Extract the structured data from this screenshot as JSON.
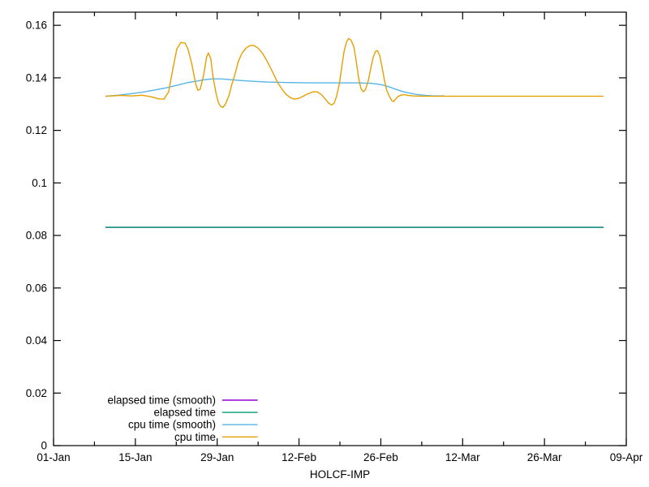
{
  "chart_data": {
    "type": "line",
    "title": "",
    "xlabel": "HOLCF-IMP",
    "ylabel": "",
    "grid": false,
    "background_color": "#ffffff",
    "axis_color": "#000000",
    "x_axis": {
      "unit": "date",
      "range_days": [
        0,
        98
      ],
      "major_ticks": [
        {
          "day": 0,
          "label": "01-Jan"
        },
        {
          "day": 14,
          "label": "15-Jan"
        },
        {
          "day": 28,
          "label": "29-Jan"
        },
        {
          "day": 42,
          "label": "12-Feb"
        },
        {
          "day": 56,
          "label": "26-Feb"
        },
        {
          "day": 70,
          "label": "12-Mar"
        },
        {
          "day": 84,
          "label": "26-Mar"
        },
        {
          "day": 98,
          "label": "09-Apr"
        }
      ],
      "minor_tick_days": [
        7,
        21,
        35,
        49,
        63,
        77,
        91
      ]
    },
    "y_axis": {
      "range": [
        0,
        0.165
      ],
      "ticks": [
        {
          "value": 0,
          "label": "0"
        },
        {
          "value": 0.02,
          "label": "0.02"
        },
        {
          "value": 0.04,
          "label": "0.04"
        },
        {
          "value": 0.06,
          "label": "0.06"
        },
        {
          "value": 0.08,
          "label": "0.08"
        },
        {
          "value": 0.1,
          "label": "0.1"
        },
        {
          "value": 0.12,
          "label": "0.12"
        },
        {
          "value": 0.14,
          "label": "0.14"
        },
        {
          "value": 0.16,
          "label": "0.16"
        }
      ]
    },
    "legend": {
      "position": "bottom-left-inside",
      "entries": [
        {
          "label": "elapsed time (smooth)",
          "color": "#9400d3"
        },
        {
          "label": "elapsed time",
          "color": "#009e73"
        },
        {
          "label": "cpu time (smooth)",
          "color": "#56b4e9"
        },
        {
          "label": "cpu time",
          "color": "#e69f00"
        }
      ]
    },
    "series": [
      {
        "name": "elapsed time (smooth)",
        "color": "#9400d3",
        "points": [
          [
            8.9,
            0.0831
          ],
          [
            94.1,
            0.0831
          ]
        ]
      },
      {
        "name": "elapsed time",
        "color": "#009e73",
        "points": [
          [
            8.9,
            0.0831
          ],
          [
            94.1,
            0.0831
          ]
        ]
      },
      {
        "name": "cpu time (smooth)",
        "color": "#56b4e9",
        "points": [
          [
            8.9,
            0.133
          ],
          [
            11,
            0.1334
          ],
          [
            13,
            0.1339
          ],
          [
            15.1,
            0.1345
          ],
          [
            17.2,
            0.1353
          ],
          [
            19.3,
            0.1362
          ],
          [
            21.4,
            0.1373
          ],
          [
            23,
            0.1382
          ],
          [
            24.6,
            0.1388
          ],
          [
            25.8,
            0.1393
          ],
          [
            27.2,
            0.1396
          ],
          [
            28.6,
            0.1396
          ],
          [
            30,
            0.1394
          ],
          [
            31.8,
            0.139
          ],
          [
            33.9,
            0.1387
          ],
          [
            36.6,
            0.1384
          ],
          [
            40.1,
            0.1382
          ],
          [
            43.6,
            0.1381
          ],
          [
            47.8,
            0.1381
          ],
          [
            51.9,
            0.1381
          ],
          [
            54.4,
            0.1379
          ],
          [
            56.1,
            0.1374
          ],
          [
            57.5,
            0.1365
          ],
          [
            58.6,
            0.1356
          ],
          [
            59.7,
            0.1348
          ],
          [
            60.9,
            0.1342
          ],
          [
            62.3,
            0.1336
          ],
          [
            63.7,
            0.1333
          ],
          [
            65.1,
            0.1331
          ],
          [
            66.9,
            0.1331
          ]
        ]
      },
      {
        "name": "cpu time",
        "color": "#e69f00",
        "points": [
          [
            8.9,
            0.133
          ],
          [
            11.4,
            0.1333
          ],
          [
            13.5,
            0.1331
          ],
          [
            15.1,
            0.1334
          ],
          [
            16.7,
            0.1328
          ],
          [
            18,
            0.132
          ],
          [
            18.9,
            0.1319
          ],
          [
            19.7,
            0.1347
          ],
          [
            20.4,
            0.1433
          ],
          [
            21.1,
            0.151
          ],
          [
            21.8,
            0.1535
          ],
          [
            22.5,
            0.1532
          ],
          [
            23,
            0.151
          ],
          [
            23.7,
            0.1449
          ],
          [
            24.3,
            0.1378
          ],
          [
            24.7,
            0.1353
          ],
          [
            25.1,
            0.1356
          ],
          [
            25.7,
            0.1412
          ],
          [
            26.2,
            0.148
          ],
          [
            26.5,
            0.1495
          ],
          [
            26.9,
            0.1473
          ],
          [
            27.3,
            0.1402
          ],
          [
            27.8,
            0.1341
          ],
          [
            28.2,
            0.1306
          ],
          [
            28.6,
            0.1291
          ],
          [
            29,
            0.1288
          ],
          [
            29.4,
            0.13
          ],
          [
            30,
            0.1331
          ],
          [
            30.5,
            0.1374
          ],
          [
            31.1,
            0.1418
          ],
          [
            31.6,
            0.1461
          ],
          [
            32.2,
            0.1492
          ],
          [
            32.9,
            0.1513
          ],
          [
            33.6,
            0.1523
          ],
          [
            34.3,
            0.1523
          ],
          [
            35,
            0.1513
          ],
          [
            35.8,
            0.1492
          ],
          [
            36.6,
            0.1461
          ],
          [
            37.5,
            0.1421
          ],
          [
            38.3,
            0.1384
          ],
          [
            39.1,
            0.1356
          ],
          [
            39.8,
            0.1337
          ],
          [
            40.5,
            0.1325
          ],
          [
            41.2,
            0.1319
          ],
          [
            41.9,
            0.1322
          ],
          [
            42.8,
            0.1331
          ],
          [
            43.6,
            0.134
          ],
          [
            44.4,
            0.1347
          ],
          [
            45.1,
            0.1347
          ],
          [
            45.8,
            0.1337
          ],
          [
            46.5,
            0.1319
          ],
          [
            47.1,
            0.1303
          ],
          [
            47.6,
            0.1297
          ],
          [
            48,
            0.1303
          ],
          [
            48.4,
            0.1328
          ],
          [
            48.9,
            0.1377
          ],
          [
            49.3,
            0.1439
          ],
          [
            49.7,
            0.1498
          ],
          [
            50.1,
            0.1535
          ],
          [
            50.5,
            0.155
          ],
          [
            50.9,
            0.1544
          ],
          [
            51.4,
            0.1517
          ],
          [
            51.8,
            0.1461
          ],
          [
            52.2,
            0.1399
          ],
          [
            52.6,
            0.1359
          ],
          [
            53,
            0.1347
          ],
          [
            53.4,
            0.1356
          ],
          [
            53.9,
            0.1393
          ],
          [
            54.3,
            0.1439
          ],
          [
            54.7,
            0.1479
          ],
          [
            55.1,
            0.1501
          ],
          [
            55.4,
            0.1504
          ],
          [
            55.8,
            0.1486
          ],
          [
            56.2,
            0.1442
          ],
          [
            56.6,
            0.1393
          ],
          [
            57,
            0.1353
          ],
          [
            57.5,
            0.1328
          ],
          [
            57.9,
            0.1313
          ],
          [
            58.2,
            0.131
          ],
          [
            58.4,
            0.1316
          ],
          [
            58.9,
            0.1328
          ],
          [
            59.4,
            0.1334
          ],
          [
            60,
            0.1336
          ],
          [
            60.7,
            0.1333
          ],
          [
            61.6,
            0.1331
          ],
          [
            63,
            0.133
          ],
          [
            65.8,
            0.133
          ],
          [
            71.3,
            0.133
          ],
          [
            79.7,
            0.133
          ],
          [
            88,
            0.133
          ],
          [
            94.1,
            0.133
          ]
        ]
      }
    ]
  }
}
